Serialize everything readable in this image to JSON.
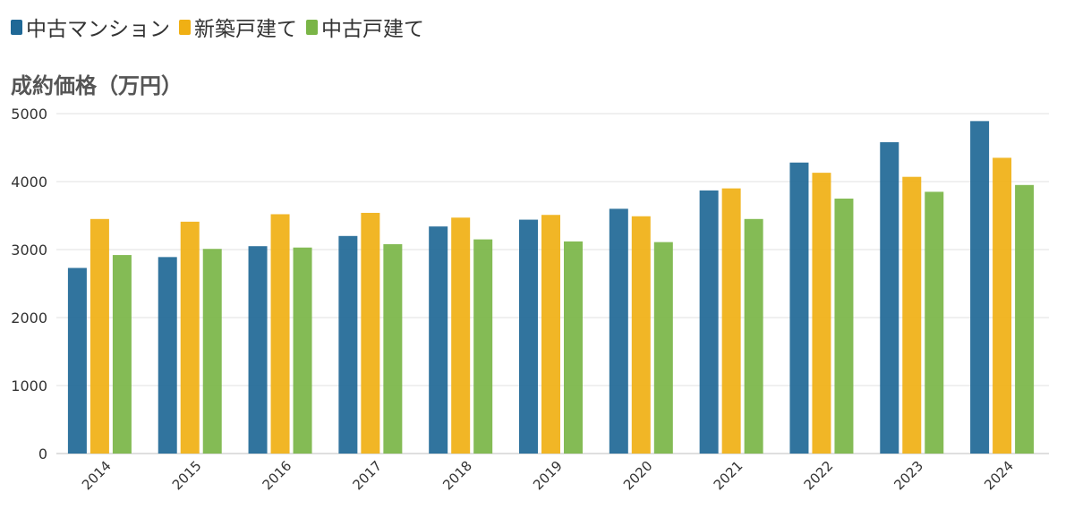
{
  "chart_data": {
    "type": "bar",
    "title": "",
    "ylabel": "成約価格（万円）",
    "xlabel": "",
    "categories": [
      "2014",
      "2015",
      "2016",
      "2017",
      "2018",
      "2019",
      "2020",
      "2021",
      "2022",
      "2023",
      "2024"
    ],
    "series": [
      {
        "name": "中古マンション",
        "color": "#1f6896",
        "values": [
          2730,
          2890,
          3050,
          3200,
          3340,
          3440,
          3600,
          3870,
          4280,
          4580,
          4890
        ]
      },
      {
        "name": "新築戸建て",
        "color": "#f0b014",
        "values": [
          3450,
          3410,
          3520,
          3540,
          3470,
          3510,
          3490,
          3900,
          4130,
          4070,
          4350
        ]
      },
      {
        "name": "中古戸建て",
        "color": "#7ab547",
        "values": [
          2920,
          3010,
          3030,
          3080,
          3150,
          3120,
          3110,
          3450,
          3750,
          3850,
          3950
        ]
      }
    ],
    "ylim": [
      0,
      5000
    ],
    "yticks": [
      0,
      1000,
      2000,
      3000,
      4000,
      5000
    ],
    "grid": true,
    "legend_position": "top-left"
  }
}
